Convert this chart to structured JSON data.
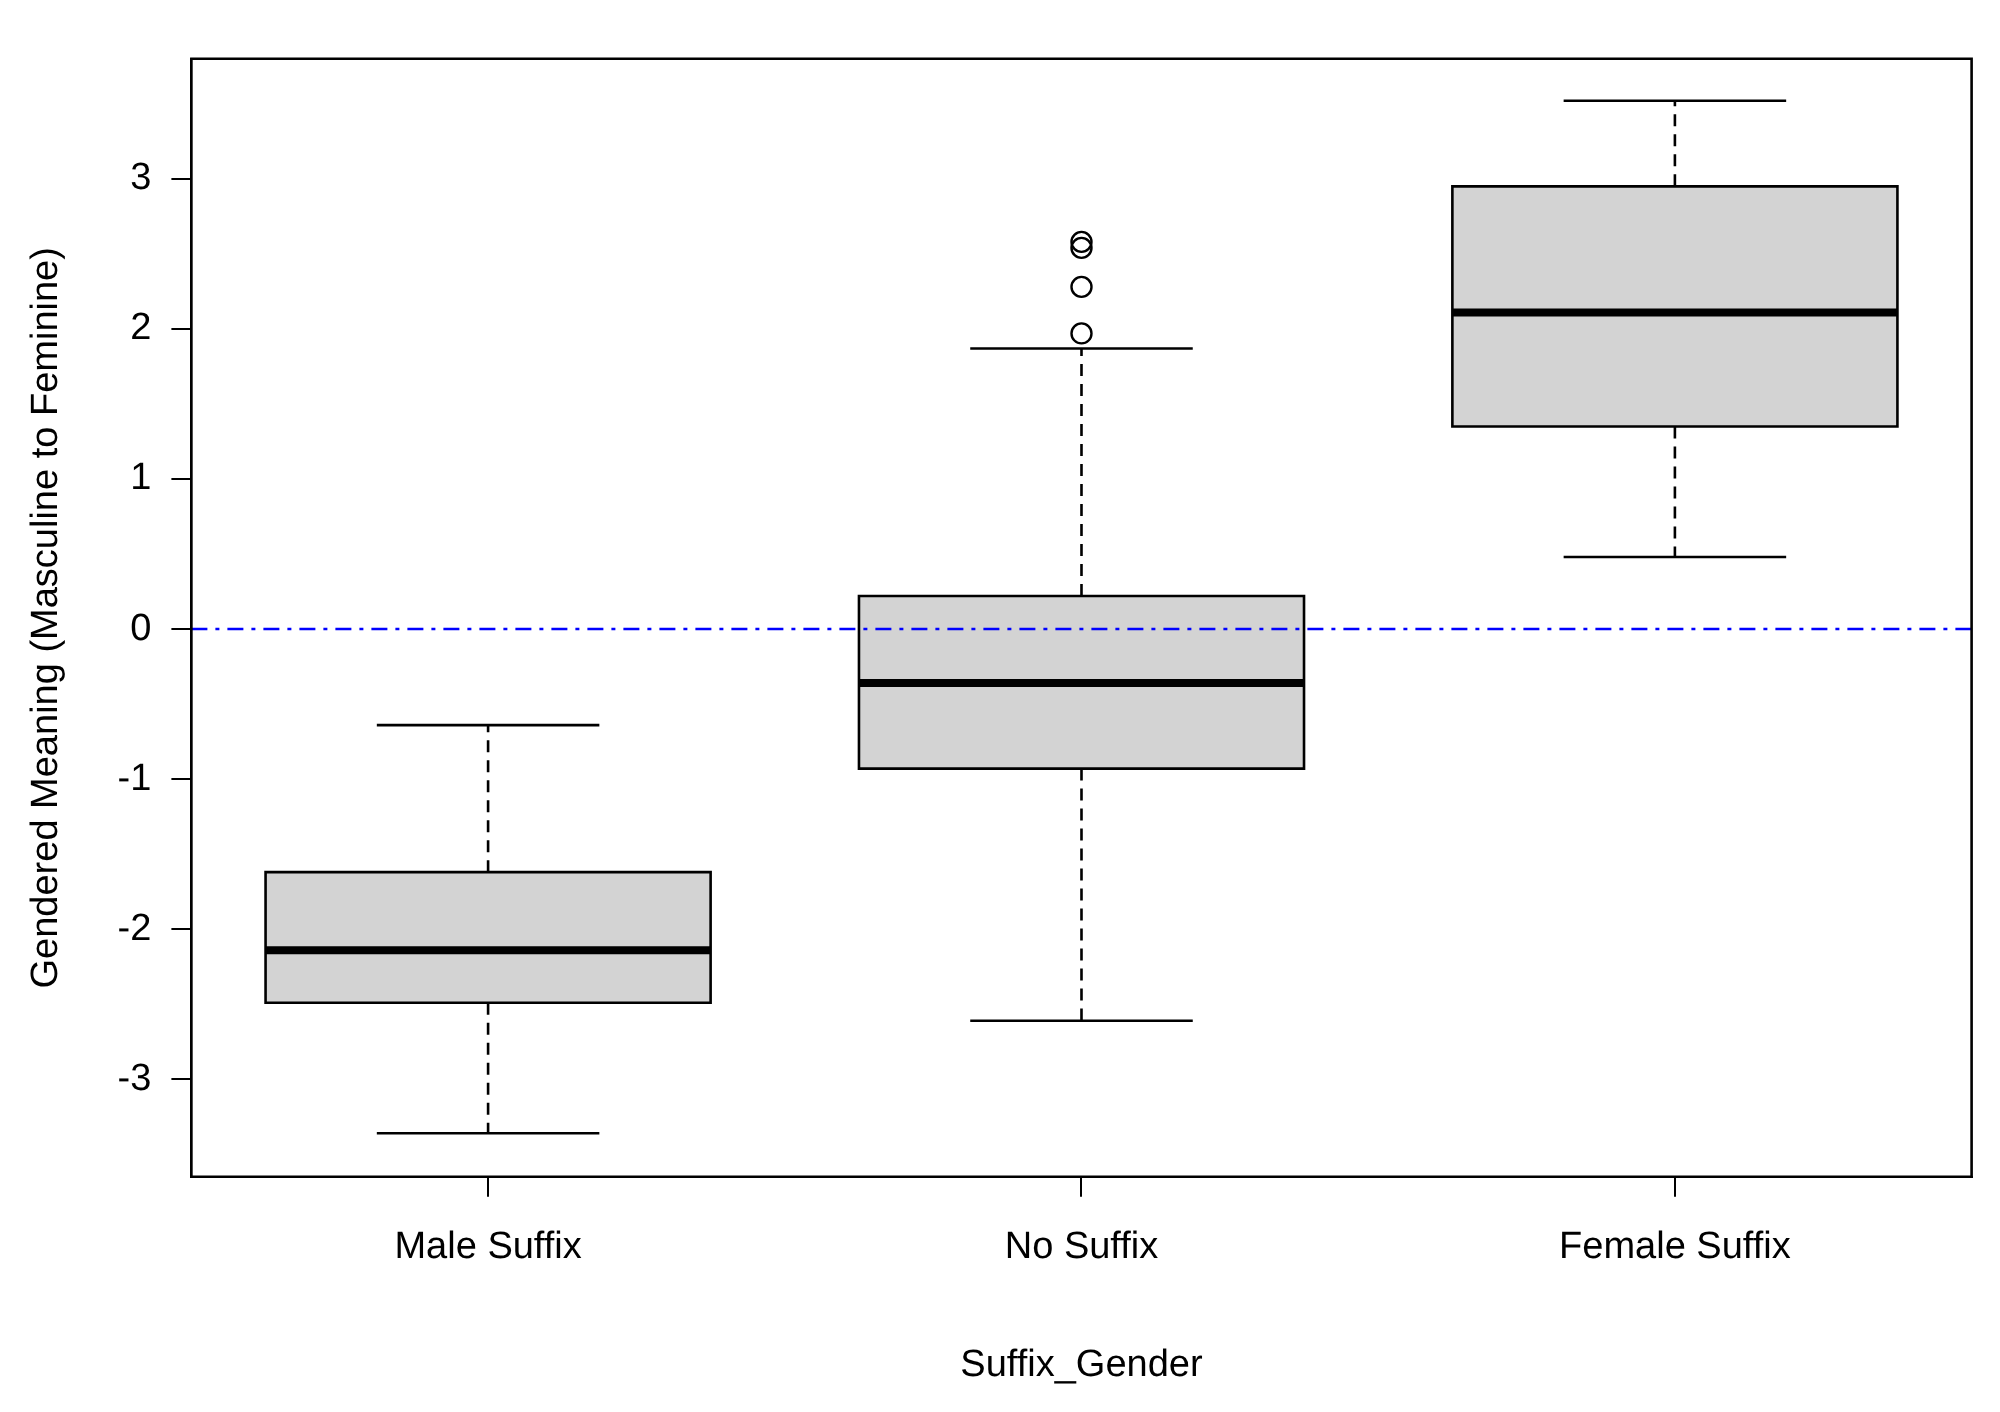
{
  "chart_data": {
    "type": "box",
    "xlabel": "Suffix_Gender",
    "ylabel": "Gendered Meaning (Masculine to Feminine)",
    "categories": [
      "Male Suffix",
      "No Suffix",
      "Female Suffix"
    ],
    "series": [
      {
        "color": "#d3d3d3",
        "boxes": [
          {
            "low": -3.36,
            "q1": -2.49,
            "median": -2.14,
            "q3": -1.62,
            "high": -0.64
          },
          {
            "low": -2.61,
            "q1": -0.93,
            "median": -0.36,
            "q3": 0.22,
            "high": 1.87,
            "outliers": [
              1.97,
              2.28,
              2.54,
              2.58
            ]
          },
          {
            "low": 0.48,
            "q1": 1.35,
            "median": 2.11,
            "q3": 2.95,
            "high": 3.52
          }
        ]
      }
    ],
    "ylim": [
      -3.65,
      3.8
    ],
    "yticks": [
      -3,
      -2,
      -1,
      0,
      1,
      2,
      3
    ],
    "ref_lines": [
      {
        "axis": "y",
        "value": 0,
        "color": "#0000ff",
        "line_style": "dashdot"
      }
    ],
    "grid": false,
    "legend": false
  }
}
